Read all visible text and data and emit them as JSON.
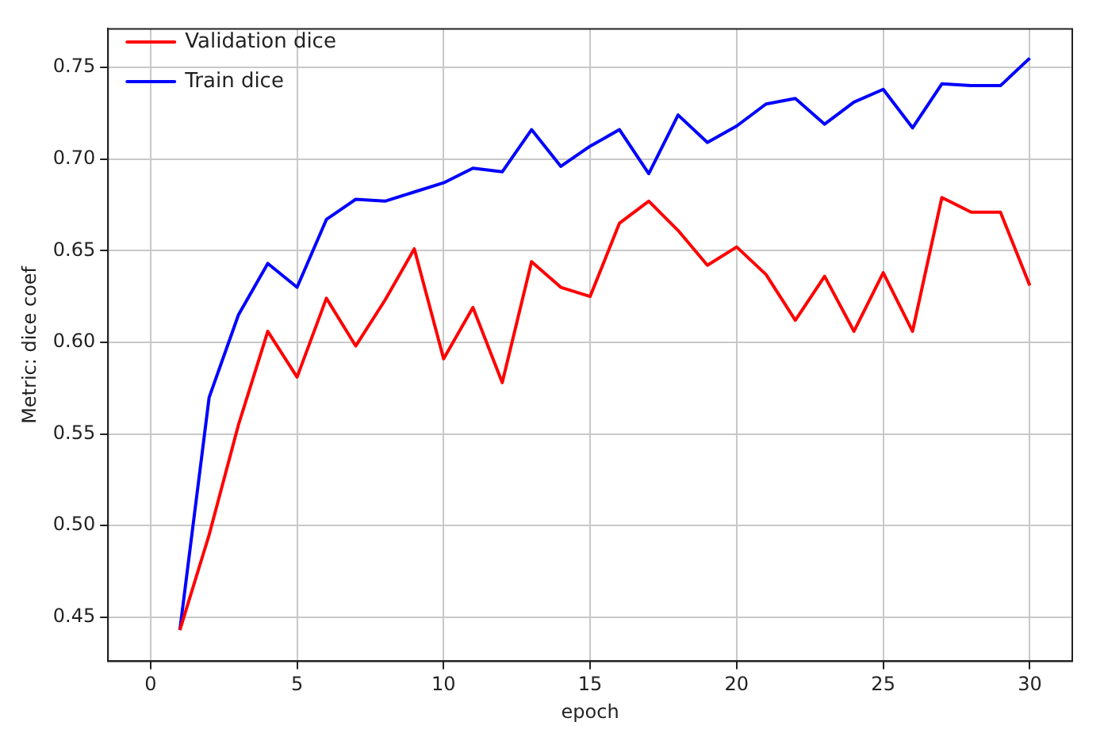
{
  "chart_data": {
    "type": "line",
    "xlabel": "epoch",
    "ylabel": "Metric: dice coef",
    "x": [
      1,
      2,
      3,
      4,
      5,
      6,
      7,
      8,
      9,
      10,
      11,
      12,
      13,
      14,
      15,
      16,
      17,
      18,
      19,
      20,
      21,
      22,
      23,
      24,
      25,
      26,
      27,
      28,
      29,
      30
    ],
    "series": [
      {
        "name": "Validation dice",
        "color": "#ff0000",
        "values": [
          0.443,
          0.495,
          0.555,
          0.606,
          0.581,
          0.624,
          0.598,
          0.623,
          0.651,
          0.591,
          0.619,
          0.578,
          0.644,
          0.63,
          0.625,
          0.665,
          0.677,
          0.661,
          0.642,
          0.652,
          0.637,
          0.612,
          0.636,
          0.606,
          0.638,
          0.606,
          0.679,
          0.671,
          0.671,
          0.631
        ]
      },
      {
        "name": "Train dice",
        "color": "#0000ff",
        "values": [
          0.443,
          0.57,
          0.615,
          0.643,
          0.63,
          0.667,
          0.678,
          0.677,
          0.682,
          0.687,
          0.695,
          0.693,
          0.716,
          0.696,
          0.707,
          0.716,
          0.692,
          0.724,
          0.709,
          0.718,
          0.73,
          0.733,
          0.719,
          0.731,
          0.738,
          0.717,
          0.741,
          0.74,
          0.74,
          0.755
        ]
      }
    ],
    "xlim": [
      -1.45,
      31.45
    ],
    "xticks": [
      0,
      5,
      10,
      15,
      20,
      25,
      30
    ],
    "ylim": [
      0.426,
      0.771
    ],
    "yticks": [
      0.45,
      {
        "value": 0.5,
        "label": "0.50"
      },
      0.55,
      {
        "value": 0.6,
        "label": "0.60"
      },
      0.65,
      {
        "value": 0.7,
        "label": "0.70"
      },
      0.75
    ],
    "grid": true,
    "legend": "top left",
    "marker": "none",
    "line_style": "solid"
  }
}
